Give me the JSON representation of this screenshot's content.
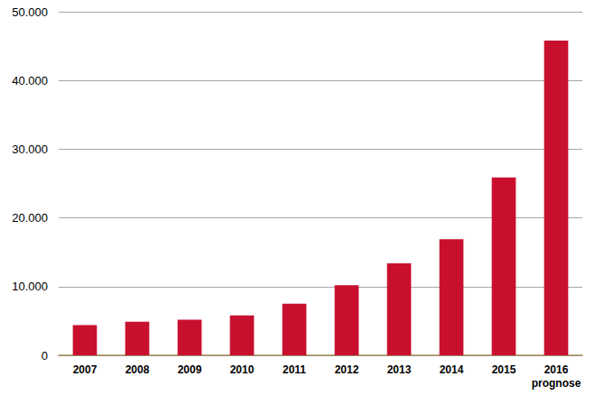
{
  "chart_data": {
    "type": "bar",
    "categories": [
      "2007",
      "2008",
      "2009",
      "2010",
      "2011",
      "2012",
      "2013",
      "2014",
      "2015",
      "2016\nprognose"
    ],
    "values": [
      4400,
      4900,
      5200,
      5800,
      7500,
      10200,
      13400,
      16900,
      25900,
      45800
    ],
    "color": "#c8102e",
    "ylim": [
      0,
      50000
    ],
    "yticks": [
      0,
      {
        "value": 10000,
        "label": "10.000"
      },
      {
        "value": 20000,
        "label": "20.000"
      },
      {
        "value": 30000,
        "label": "30.000"
      },
      {
        "value": 40000,
        "label": "40.000"
      },
      {
        "value": 50000,
        "label": "50.000"
      }
    ],
    "grid": true
  }
}
